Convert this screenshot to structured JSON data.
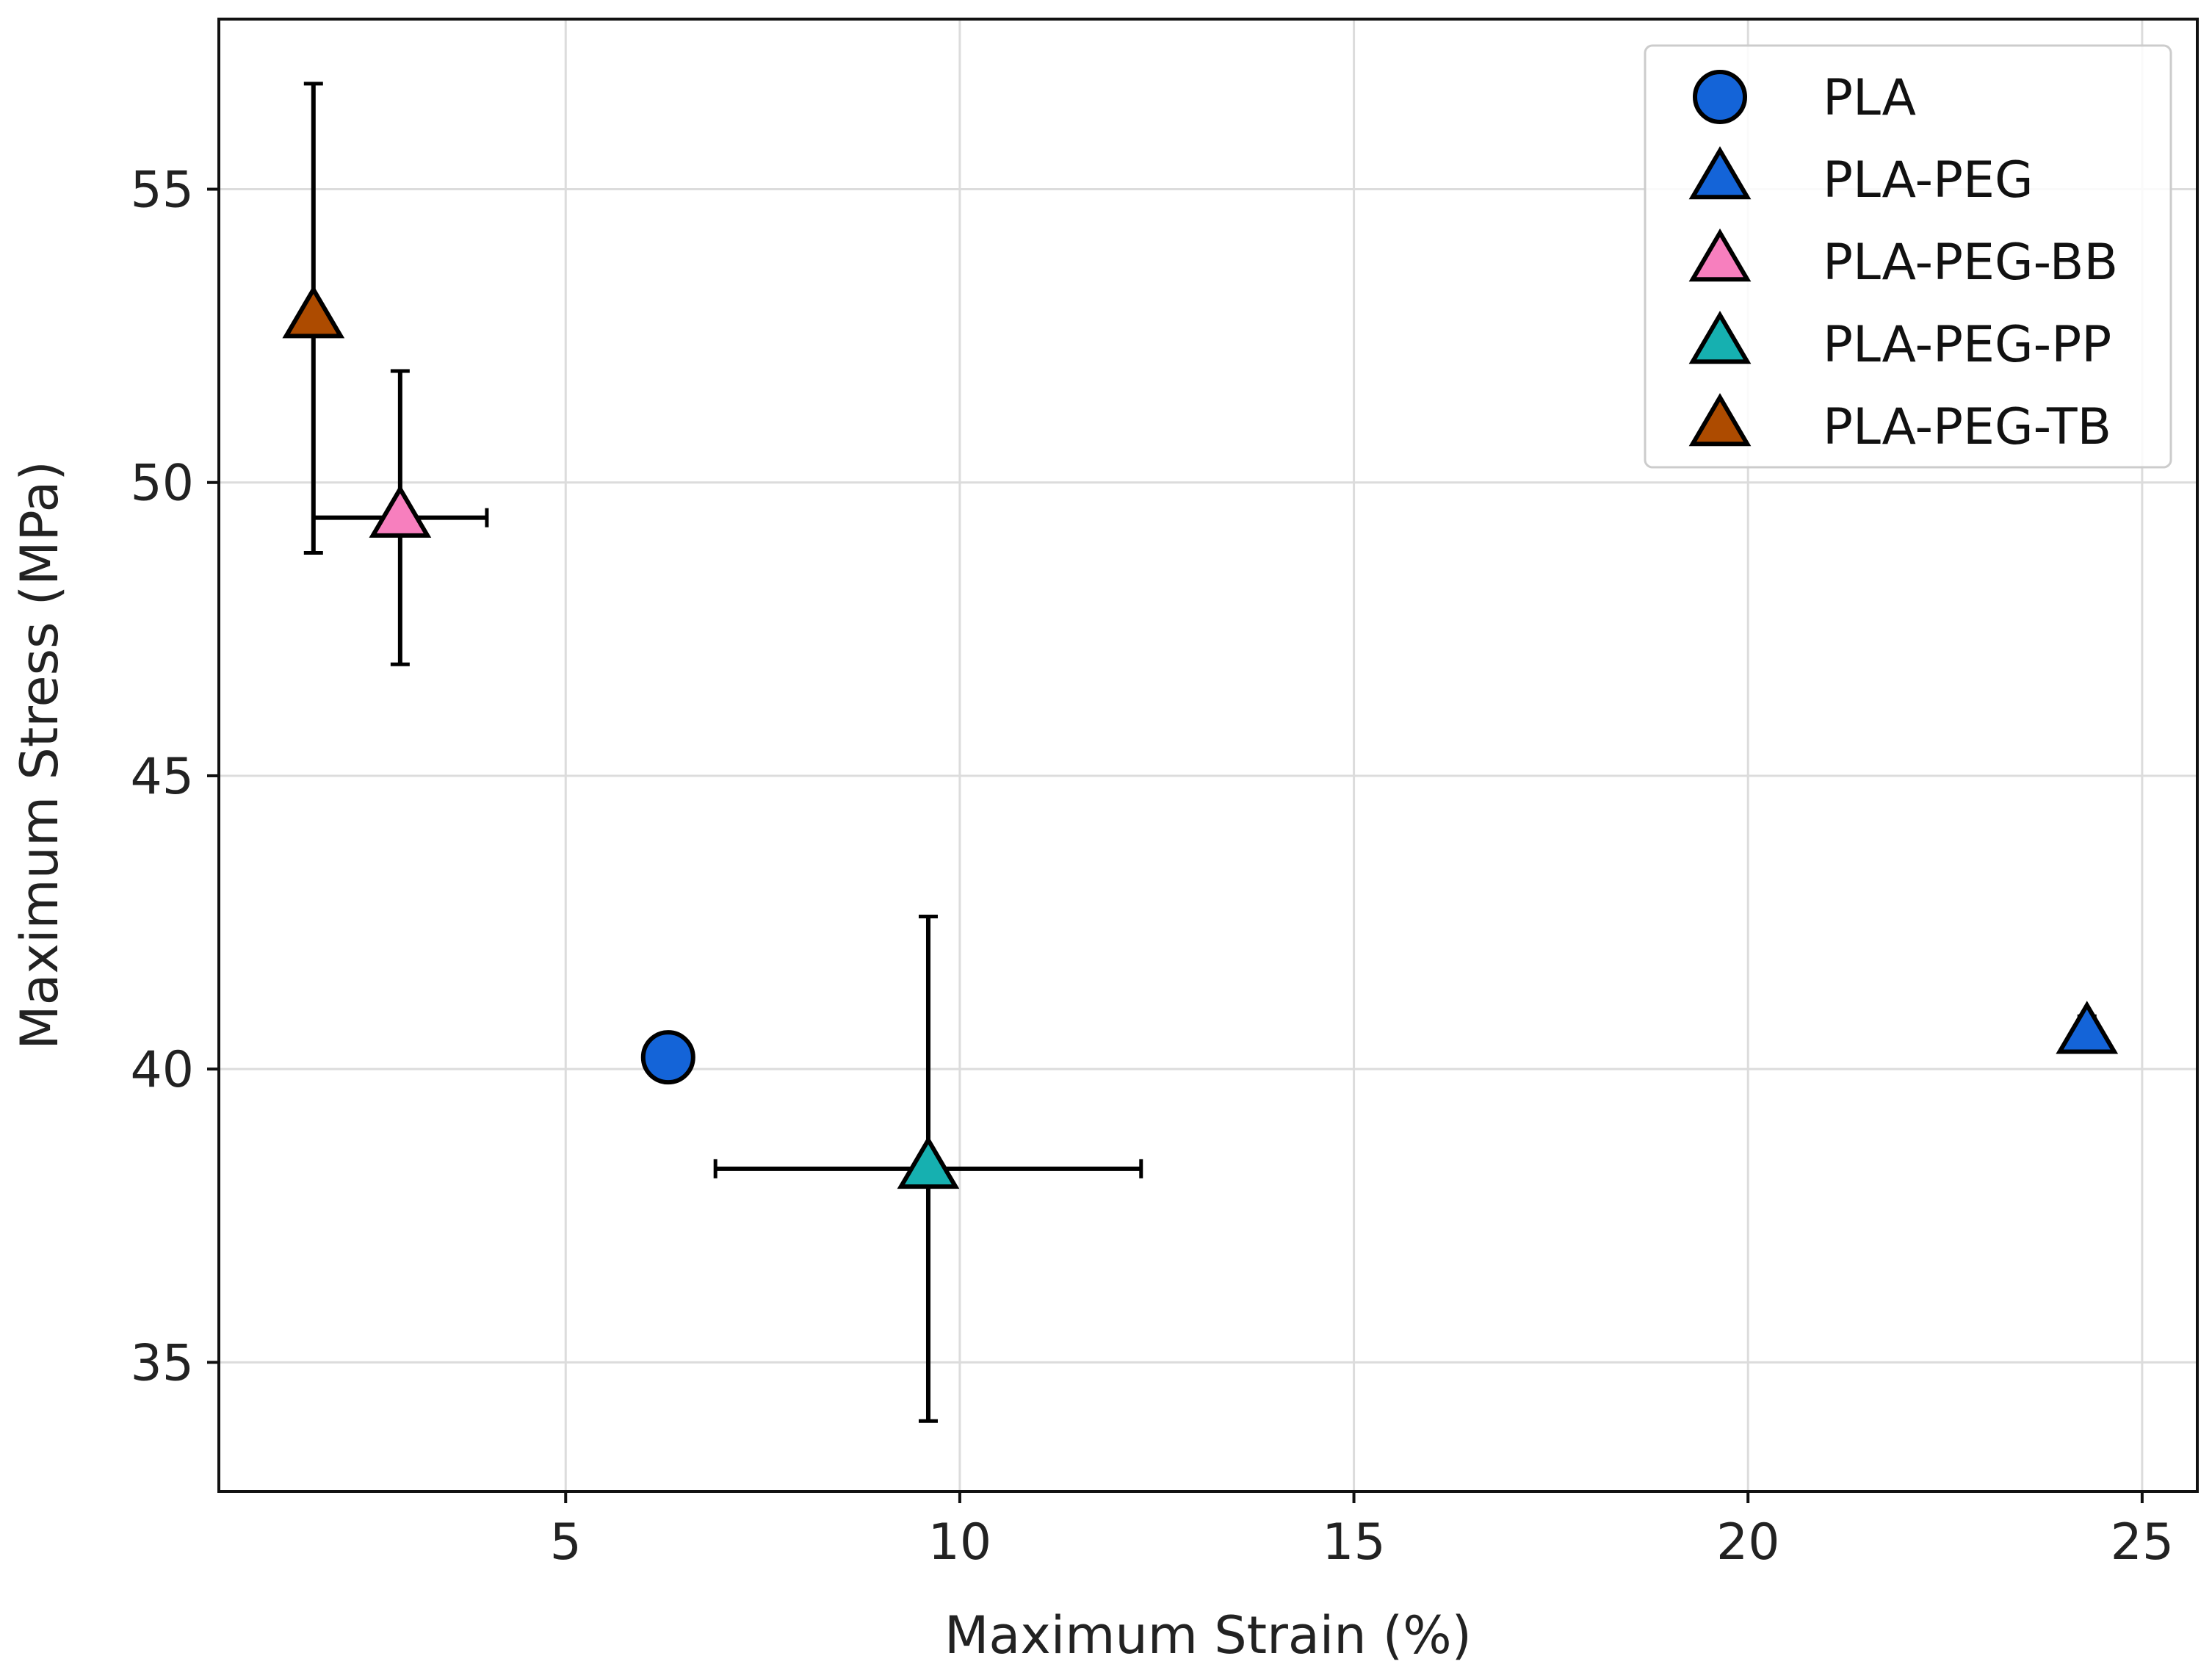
{
  "chart_data": {
    "type": "scatter",
    "title": "",
    "xlabel": "Maximum Strain (%)",
    "ylabel": "Maximum Stress (MPa)",
    "xlim": [
      0.6,
      25.7
    ],
    "ylim": [
      32.8,
      57.9
    ],
    "x_ticks": [
      5,
      10,
      15,
      20,
      25
    ],
    "y_ticks": [
      35,
      40,
      45,
      50,
      55
    ],
    "grid": true,
    "legend_position": "top-right",
    "series": [
      {
        "name": "PLA",
        "marker": "circle",
        "color": "#1464d8",
        "x": 6.3,
        "y": 40.2,
        "xerr": 0,
        "yerr": 0
      },
      {
        "name": "PLA-PEG",
        "marker": "triangle",
        "color": "#1464d8",
        "x": 24.3,
        "y": 40.6,
        "xerr": 0,
        "yerr": 0.3
      },
      {
        "name": "PLA-PEG-BB",
        "marker": "triangle",
        "color": "#f77fbe",
        "x": 2.9,
        "y": 49.4,
        "xerr": 1.1,
        "yerr": 2.5
      },
      {
        "name": "PLA-PEG-PP",
        "marker": "triangle",
        "color": "#16b0b0",
        "x": 9.6,
        "y": 38.3,
        "xerr": 2.7,
        "yerr": 4.3
      },
      {
        "name": "PLA-PEG-TB",
        "marker": "triangle",
        "color": "#ad4b00",
        "x": 1.8,
        "y": 52.8,
        "xerr": 0,
        "yerr": 4.0
      }
    ]
  }
}
